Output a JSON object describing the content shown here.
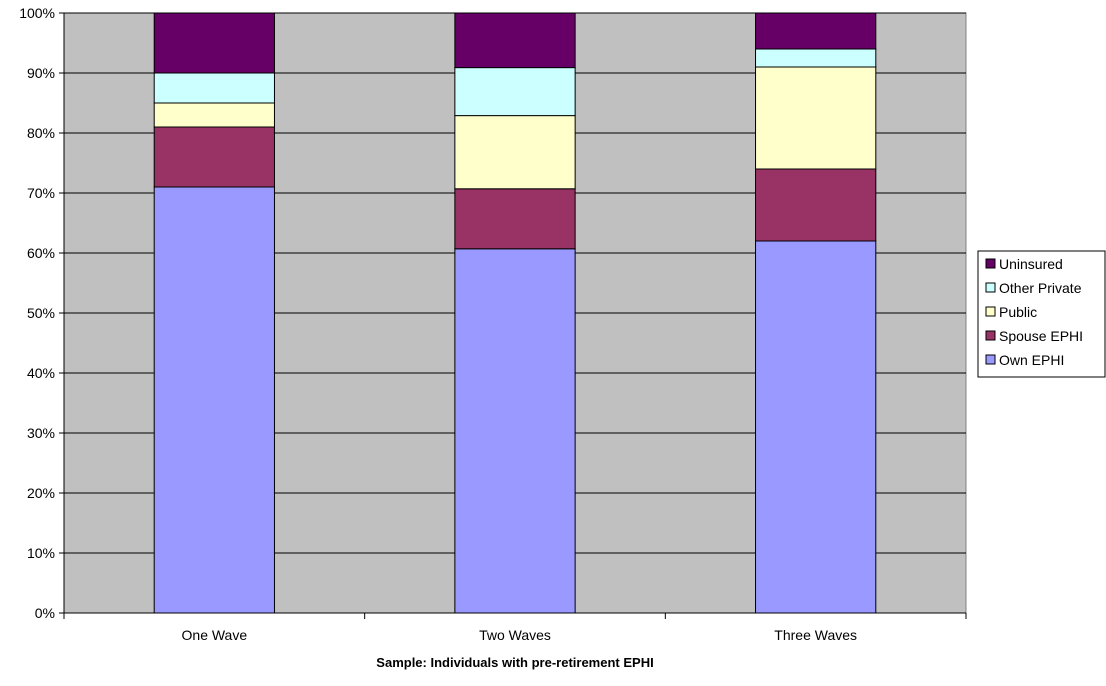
{
  "chart_data": {
    "type": "bar",
    "stacked": true,
    "categories": [
      "One Wave",
      "Two Waves",
      "Three Waves"
    ],
    "series": [
      {
        "name": "Own EPHI",
        "values": [
          71,
          60.7,
          62
        ],
        "color": "#9999ff"
      },
      {
        "name": "Spouse EPHI",
        "values": [
          10,
          10,
          12
        ],
        "color": "#993366"
      },
      {
        "name": "Public",
        "values": [
          4,
          12.2,
          17
        ],
        "color": "#ffffcc"
      },
      {
        "name": "Other Private",
        "values": [
          5,
          8,
          3
        ],
        "color": "#ccffff"
      },
      {
        "name": "Uninsured",
        "values": [
          10,
          9.1,
          6
        ],
        "color": "#660066"
      }
    ],
    "title": "",
    "xlabel": "Sample: Individuals with pre-retirement EPHI",
    "ylabel": "",
    "ylim": [
      0,
      100
    ],
    "yticks": [
      "0%",
      "10%",
      "20%",
      "30%",
      "40%",
      "50%",
      "60%",
      "70%",
      "80%",
      "90%",
      "100%"
    ],
    "legend_order": [
      "Uninsured",
      "Other Private",
      "Public",
      "Spouse EPHI",
      "Own EPHI"
    ],
    "legend_position": "right",
    "grid": true,
    "plot_background": "#c0c0c0"
  }
}
